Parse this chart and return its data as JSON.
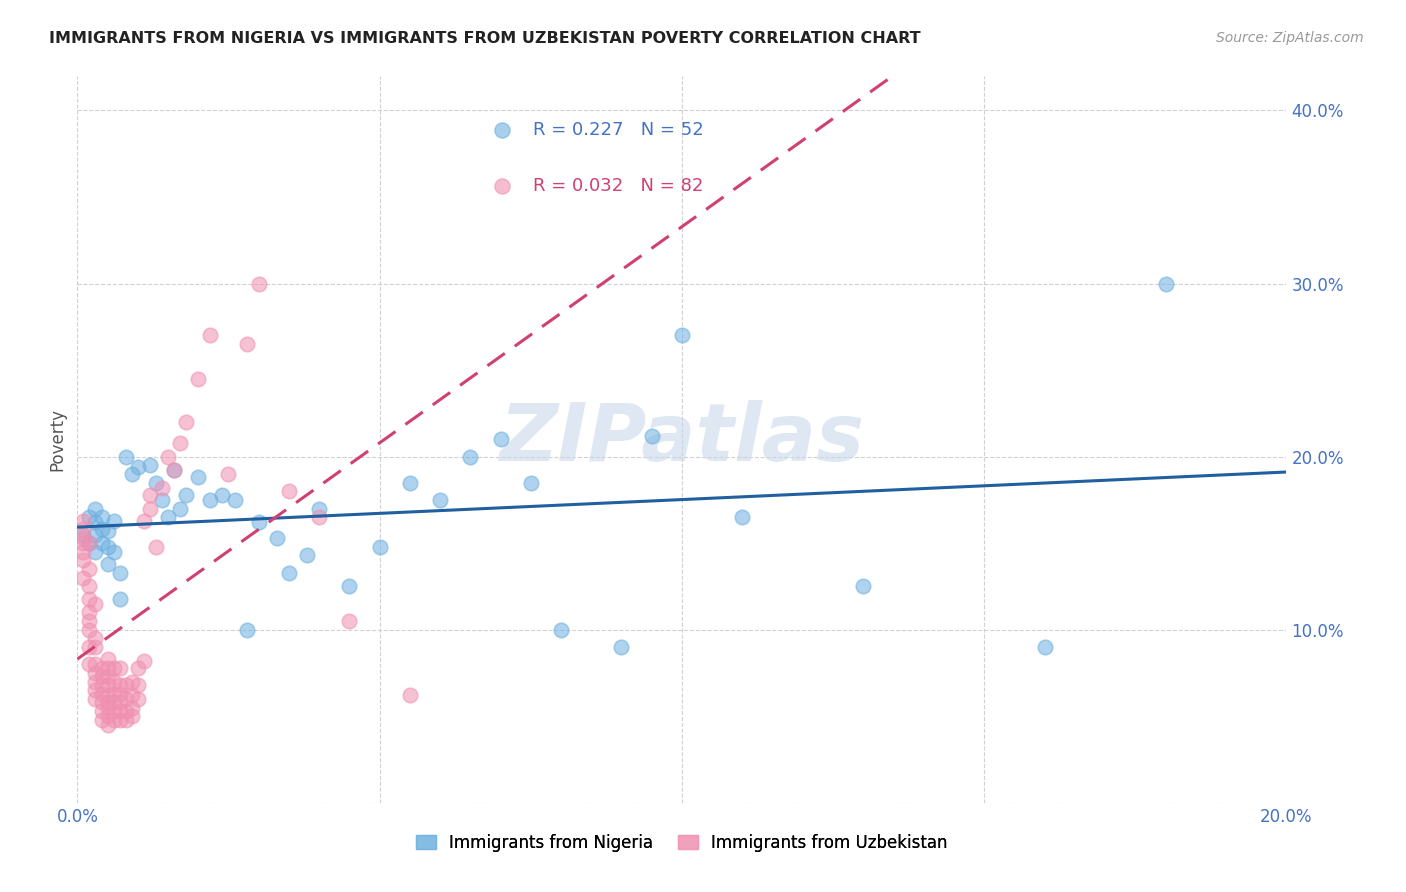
{
  "title": "IMMIGRANTS FROM NIGERIA VS IMMIGRANTS FROM UZBEKISTAN POVERTY CORRELATION CHART",
  "source": "Source: ZipAtlas.com",
  "ylabel": "Poverty",
  "xlim": [
    0.0,
    0.2
  ],
  "ylim": [
    0.0,
    0.42
  ],
  "nigeria_color": "#6eb0e0",
  "uzbekistan_color": "#f090b0",
  "nigeria_R": 0.227,
  "nigeria_N": 52,
  "uzbekistan_R": 0.032,
  "uzbekistan_N": 82,
  "nigeria_line_color": "#2060a0",
  "uzbekistan_line_color": "#d04070",
  "background_color": "#ffffff",
  "watermark": "ZIPatlas",
  "legend_label_nigeria": "Immigrants from Nigeria",
  "legend_label_uzbekistan": "Immigrants from Uzbekistan",
  "nigeria_x": [
    0.001,
    0.002,
    0.002,
    0.003,
    0.003,
    0.003,
    0.003,
    0.004,
    0.004,
    0.004,
    0.005,
    0.005,
    0.005,
    0.006,
    0.006,
    0.007,
    0.007,
    0.008,
    0.009,
    0.01,
    0.012,
    0.013,
    0.014,
    0.015,
    0.016,
    0.017,
    0.018,
    0.02,
    0.022,
    0.024,
    0.026,
    0.028,
    0.03,
    0.033,
    0.035,
    0.038,
    0.04,
    0.045,
    0.05,
    0.055,
    0.06,
    0.065,
    0.07,
    0.075,
    0.08,
    0.09,
    0.095,
    0.1,
    0.11,
    0.13,
    0.16,
    0.18
  ],
  "nigeria_y": [
    0.155,
    0.15,
    0.165,
    0.145,
    0.155,
    0.162,
    0.17,
    0.15,
    0.158,
    0.165,
    0.138,
    0.148,
    0.157,
    0.145,
    0.163,
    0.118,
    0.133,
    0.2,
    0.19,
    0.194,
    0.195,
    0.185,
    0.175,
    0.165,
    0.192,
    0.17,
    0.178,
    0.188,
    0.175,
    0.178,
    0.175,
    0.1,
    0.162,
    0.153,
    0.133,
    0.143,
    0.17,
    0.125,
    0.148,
    0.185,
    0.175,
    0.2,
    0.21,
    0.185,
    0.1,
    0.09,
    0.212,
    0.27,
    0.165,
    0.125,
    0.09,
    0.3
  ],
  "uzbekistan_x": [
    0.001,
    0.001,
    0.001,
    0.001,
    0.001,
    0.001,
    0.001,
    0.002,
    0.002,
    0.002,
    0.002,
    0.002,
    0.002,
    0.002,
    0.002,
    0.002,
    0.003,
    0.003,
    0.003,
    0.003,
    0.003,
    0.003,
    0.003,
    0.003,
    0.004,
    0.004,
    0.004,
    0.004,
    0.004,
    0.004,
    0.004,
    0.005,
    0.005,
    0.005,
    0.005,
    0.005,
    0.005,
    0.005,
    0.005,
    0.005,
    0.006,
    0.006,
    0.006,
    0.006,
    0.006,
    0.006,
    0.007,
    0.007,
    0.007,
    0.007,
    0.007,
    0.007,
    0.008,
    0.008,
    0.008,
    0.008,
    0.009,
    0.009,
    0.009,
    0.009,
    0.01,
    0.01,
    0.01,
    0.011,
    0.011,
    0.012,
    0.012,
    0.013,
    0.014,
    0.015,
    0.016,
    0.017,
    0.018,
    0.02,
    0.022,
    0.025,
    0.028,
    0.03,
    0.035,
    0.04,
    0.045,
    0.055
  ],
  "uzbekistan_y": [
    0.13,
    0.14,
    0.145,
    0.15,
    0.153,
    0.158,
    0.163,
    0.08,
    0.09,
    0.1,
    0.105,
    0.11,
    0.118,
    0.125,
    0.135,
    0.15,
    0.06,
    0.065,
    0.07,
    0.075,
    0.08,
    0.09,
    0.095,
    0.115,
    0.048,
    0.053,
    0.058,
    0.063,
    0.068,
    0.073,
    0.078,
    0.045,
    0.05,
    0.055,
    0.058,
    0.062,
    0.068,
    0.073,
    0.078,
    0.083,
    0.048,
    0.053,
    0.058,
    0.063,
    0.07,
    0.078,
    0.048,
    0.053,
    0.058,
    0.063,
    0.068,
    0.078,
    0.048,
    0.053,
    0.06,
    0.068,
    0.05,
    0.055,
    0.062,
    0.07,
    0.06,
    0.068,
    0.078,
    0.082,
    0.163,
    0.17,
    0.178,
    0.148,
    0.182,
    0.2,
    0.192,
    0.208,
    0.22,
    0.245,
    0.27,
    0.19,
    0.265,
    0.3,
    0.18,
    0.165,
    0.105,
    0.062
  ]
}
